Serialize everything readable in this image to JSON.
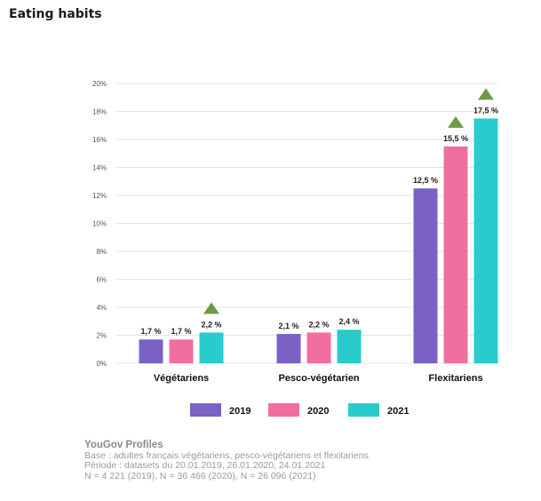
{
  "page": {
    "title": "Eating habits"
  },
  "chart_data": {
    "type": "bar",
    "categories": [
      "Végétariens",
      "Pesco-végétarien",
      "Flexitariens"
    ],
    "series": [
      {
        "name": "2019",
        "color": "#7B61C4",
        "values": [
          1.7,
          2.1,
          12.5
        ]
      },
      {
        "name": "2020",
        "color": "#F06FA0",
        "values": [
          1.7,
          2.2,
          15.5
        ]
      },
      {
        "name": "2021",
        "color": "#29CCCC",
        "values": [
          2.2,
          2.4,
          17.5
        ]
      }
    ],
    "data_labels": [
      [
        "1,7 %",
        "2,1 %",
        "12,5 %"
      ],
      [
        "1,7 %",
        "2,2 %",
        "15,5 %"
      ],
      [
        "2,2 %",
        "2,4 %",
        "17,5 %"
      ]
    ],
    "y_ticks": [
      {
        "value": 0,
        "label": "0%"
      },
      {
        "value": 2,
        "label": "2%"
      },
      {
        "value": 4,
        "label": "4%"
      },
      {
        "value": 6,
        "label": "6%"
      },
      {
        "value": 8,
        "label": "8%"
      },
      {
        "value": 10,
        "label": "10%"
      },
      {
        "value": 12,
        "label": "12%"
      },
      {
        "value": 14,
        "label": "14%"
      },
      {
        "value": 16,
        "label": "16%"
      },
      {
        "value": 18,
        "label": "18%"
      },
      {
        "value": 20,
        "label": "20%"
      }
    ],
    "ylim": [
      0,
      20
    ],
    "grid": true,
    "legend_position": "bottom",
    "increase_markers": [
      {
        "category": 0,
        "series": 2
      },
      {
        "category": 2,
        "series": 1
      },
      {
        "category": 2,
        "series": 2
      }
    ],
    "increase_marker_color": "#6E9A45"
  },
  "footer": {
    "brand": "YouGov Profiles",
    "lines": [
      "Base : adultes français végétariens, pesco-végétariens et flexitariens",
      "Période : datasets du 20.01.2019, 26.01.2020, 24.01.2021",
      "N = 4 221 (2019), N = 36 466 (2020), N = 26 096 (2021)"
    ]
  }
}
